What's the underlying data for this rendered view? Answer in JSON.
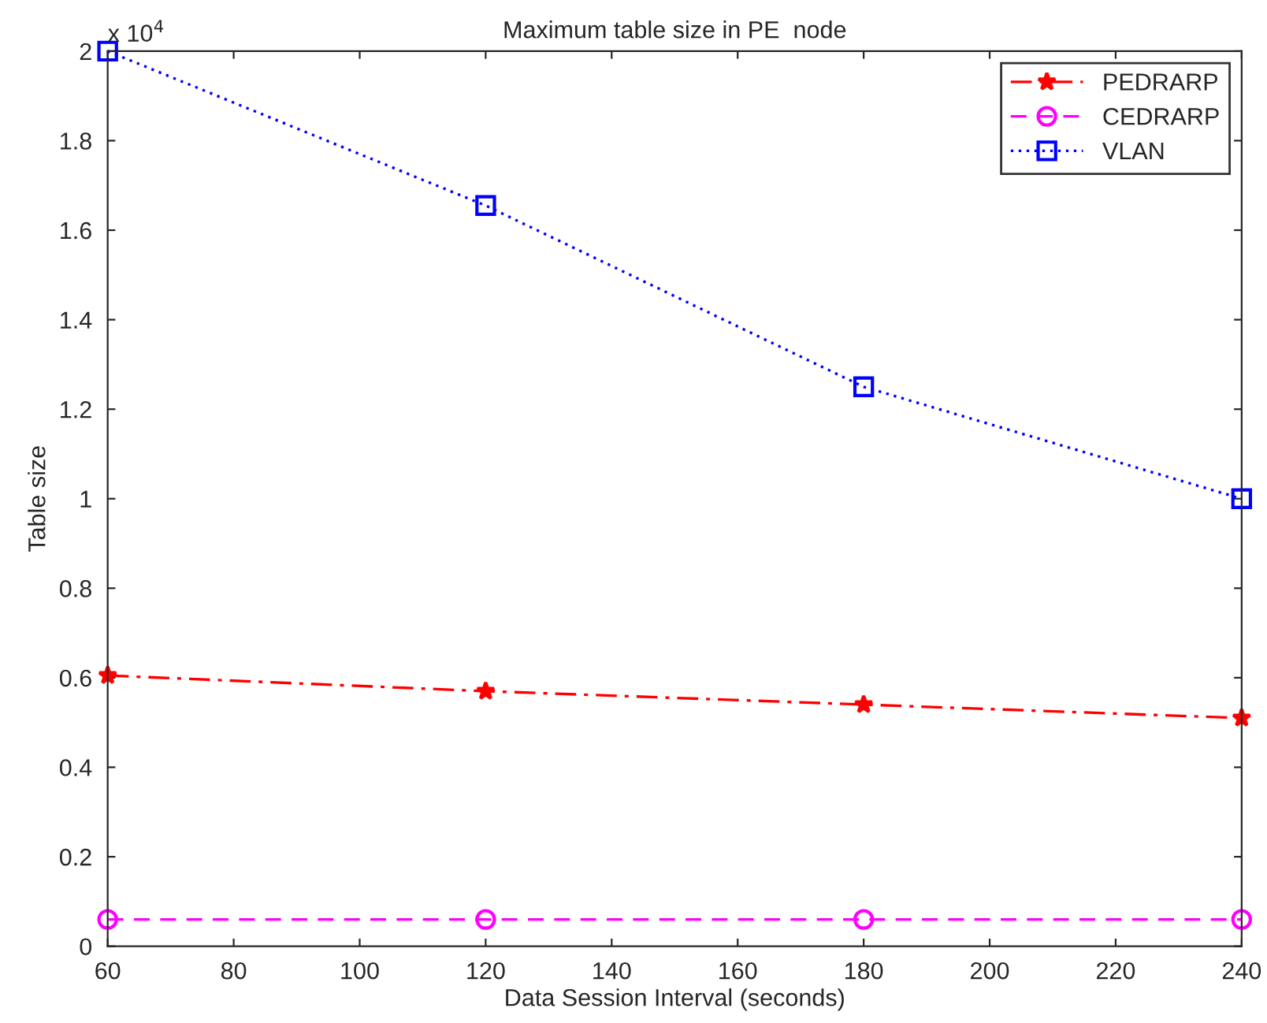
{
  "chart_data": {
    "type": "line",
    "title": "Maximum table size in PE  node",
    "xlabel": "Data Session Interval (seconds)",
    "ylabel": "Table size",
    "annotations": [
      "x 10$^{4}$"
    ],
    "x": [
      60,
      120,
      180,
      240
    ],
    "series": [
      {
        "name": "PEDRARP",
        "color": "#ff0000",
        "marker": "star",
        "line_style": "dashdot",
        "values": [
          0.605,
          0.57,
          0.54,
          0.51
        ]
      },
      {
        "name": "CEDRARP",
        "color": "#ff00ff",
        "marker": "circle",
        "line_style": "dashed",
        "values": [
          0.06,
          0.06,
          0.06,
          0.06
        ]
      },
      {
        "name": "VLAN",
        "color": "#0000ff",
        "marker": "square",
        "line_style": "dotted",
        "values": [
          2,
          1.655,
          1.25,
          1
        ]
      }
    ],
    "xlim": [
      60,
      240
    ],
    "xticks": [
      60,
      80,
      100,
      120,
      140,
      160,
      180,
      200,
      220,
      240
    ],
    "ylim": [
      0,
      2
    ],
    "yticks": [
      0,
      0.2,
      0.4,
      0.6,
      0.8,
      1,
      1.2,
      1.4,
      1.6,
      1.8,
      2
    ],
    "grid": false,
    "legend": "top right"
  }
}
